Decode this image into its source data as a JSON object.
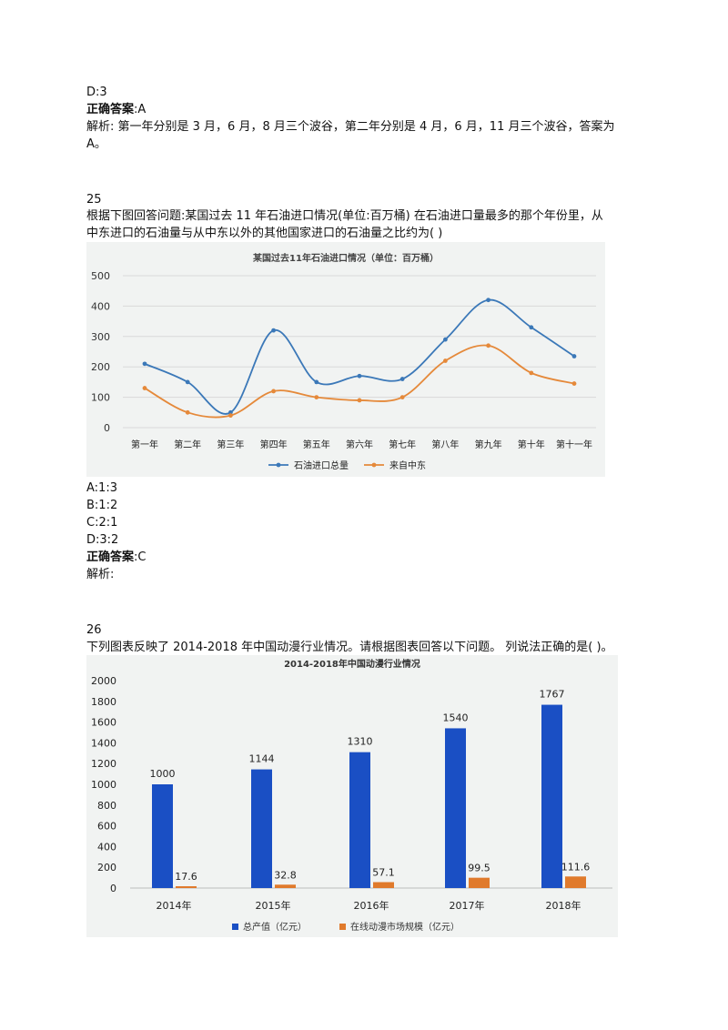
{
  "q24_tail": {
    "option_d": "D:3",
    "answer_label": "正确答案",
    "answer_value": ":A",
    "analysis_line1": "解析: 第一年分别是 3 月，6 月，8 月三个波谷，第二年分别是 4 月，6 月，11 月三个波谷，答案为",
    "analysis_line2": "A。"
  },
  "q25": {
    "number": "25",
    "question_line1": "根据下图回答问题:某国过去 11 年石油进口情况(单位:百万桶) 在石油进口量最多的那个年份里，从",
    "question_line2": "中东进口的石油量与从中东以外的其他国家进口的石油量之比约为( )",
    "options": [
      "A:1:3",
      "B:1:2",
      "C:2:1",
      "D:3:2"
    ],
    "answer_label": "正确答案",
    "answer_value": ":C",
    "analysis": "解析:"
  },
  "q26": {
    "number": "26",
    "question": "下列图表反映了 2014-2018 年中国动漫行业情况。请根据图表回答以下问题。 列说法正确的是( )。"
  },
  "chart_data": [
    {
      "type": "line",
      "title": "某国过去11年石油进口情况（单位：百万桶）",
      "categories": [
        "第一年",
        "第二年",
        "第三年",
        "第四年",
        "第五年",
        "第六年",
        "第七年",
        "第八年",
        "第九年",
        "第十年",
        "第十一年"
      ],
      "series": [
        {
          "name": "石油进口总量",
          "color": "#3b78b8",
          "values": [
            210,
            150,
            50,
            320,
            150,
            170,
            160,
            290,
            420,
            330,
            235
          ]
        },
        {
          "name": "来自中东",
          "color": "#e5893a",
          "values": [
            130,
            50,
            40,
            120,
            100,
            90,
            100,
            220,
            270,
            180,
            145
          ]
        }
      ],
      "yticks": [
        0,
        100,
        200,
        300,
        400,
        500
      ],
      "ylim": [
        0,
        500
      ],
      "grid": true,
      "legend": "bottom"
    },
    {
      "type": "bar",
      "title": "2014-2018年中国动漫行业情况",
      "categories": [
        "2014年",
        "2015年",
        "2016年",
        "2017年",
        "2018年"
      ],
      "series": [
        {
          "name": "总产值（亿元）",
          "color": "#1a4fc4",
          "values": [
            1000,
            1144,
            1310,
            1540,
            1767
          ],
          "labels": [
            "1000",
            "1144",
            "1310",
            "1540",
            "1767"
          ]
        },
        {
          "name": "在线动漫市场规模（亿元）",
          "color": "#e07a2c",
          "values": [
            17.6,
            32.8,
            57.1,
            99.5,
            111.6
          ],
          "labels": [
            "17.6",
            "32.8",
            "57.1",
            "99.5",
            "111.6"
          ]
        }
      ],
      "yticks": [
        0,
        200,
        400,
        600,
        800,
        1000,
        1200,
        1400,
        1600,
        1800,
        2000
      ],
      "ylim": [
        0,
        2000
      ],
      "grid": false,
      "legend": "bottom"
    }
  ]
}
